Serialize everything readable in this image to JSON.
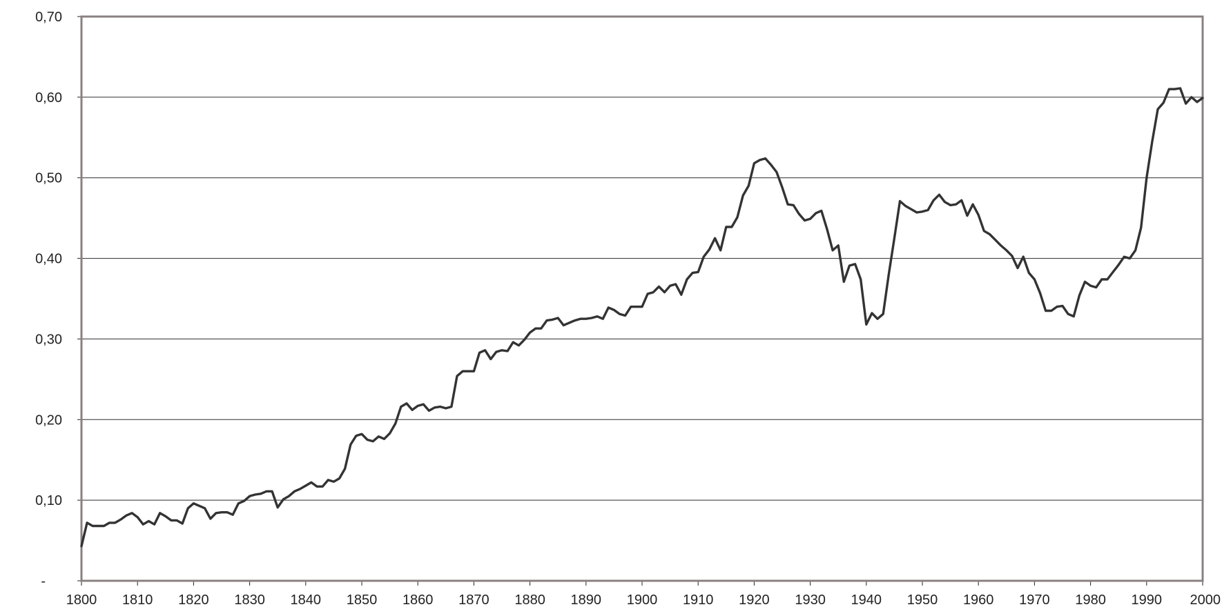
{
  "chart_data": {
    "type": "line",
    "title": "",
    "xlabel": "",
    "ylabel": "",
    "xlim": [
      1800,
      2000
    ],
    "ylim": [
      0,
      0.7
    ],
    "grid": true,
    "legend": "none",
    "line_color": "#333333",
    "y_ticks": [
      {
        "value": 0.0,
        "label": "-"
      },
      {
        "value": 0.1,
        "label": "0,10"
      },
      {
        "value": 0.2,
        "label": "0,20"
      },
      {
        "value": 0.3,
        "label": "0,30"
      },
      {
        "value": 0.4,
        "label": "0,40"
      },
      {
        "value": 0.5,
        "label": "0,50"
      },
      {
        "value": 0.6,
        "label": "0,60"
      },
      {
        "value": 0.7,
        "label": "0,70"
      }
    ],
    "x_ticks": [
      {
        "value": 1800,
        "label": "1800"
      },
      {
        "value": 1810,
        "label": "1810"
      },
      {
        "value": 1820,
        "label": "1820"
      },
      {
        "value": 1830,
        "label": "1830"
      },
      {
        "value": 1840,
        "label": "1840"
      },
      {
        "value": 1850,
        "label": "1850"
      },
      {
        "value": 1860,
        "label": "1860"
      },
      {
        "value": 1870,
        "label": "1870"
      },
      {
        "value": 1880,
        "label": "1880"
      },
      {
        "value": 1890,
        "label": "1890"
      },
      {
        "value": 1900,
        "label": "1900"
      },
      {
        "value": 1910,
        "label": "1910"
      },
      {
        "value": 1920,
        "label": "1920"
      },
      {
        "value": 1930,
        "label": "1930"
      },
      {
        "value": 1940,
        "label": "1940"
      },
      {
        "value": 1950,
        "label": "1950"
      },
      {
        "value": 1960,
        "label": "1960"
      },
      {
        "value": 1970,
        "label": "1970"
      },
      {
        "value": 1980,
        "label": "1980"
      },
      {
        "value": 1990,
        "label": "1990"
      },
      {
        "value": 2000,
        "label": "2000"
      }
    ],
    "series": [
      {
        "x": [
          1800,
          1801,
          1802,
          1803,
          1804,
          1805,
          1806,
          1807,
          1808,
          1809,
          1810,
          1811,
          1812,
          1813,
          1814,
          1815,
          1816,
          1817,
          1818,
          1819,
          1820,
          1821,
          1822,
          1823,
          1824,
          1825,
          1826,
          1827,
          1828,
          1829,
          1830,
          1831,
          1832,
          1833,
          1834,
          1835,
          1836,
          1837,
          1838,
          1839,
          1840,
          1841,
          1842,
          1843,
          1844,
          1845,
          1846,
          1847,
          1848,
          1849,
          1850,
          1851,
          1852,
          1853,
          1854,
          1855,
          1856,
          1857,
          1858,
          1859,
          1860,
          1861,
          1862,
          1863,
          1864,
          1865,
          1866,
          1867,
          1868,
          1869,
          1870,
          1871,
          1872,
          1873,
          1874,
          1875,
          1876,
          1877,
          1878,
          1879,
          1880,
          1881,
          1882,
          1883,
          1884,
          1885,
          1886,
          1887,
          1888,
          1889,
          1890,
          1891,
          1892,
          1893,
          1894,
          1895,
          1896,
          1897,
          1898,
          1899,
          1900,
          1901,
          1902,
          1903,
          1904,
          1905,
          1906,
          1907,
          1908,
          1909,
          1910,
          1911,
          1912,
          1913,
          1914,
          1915,
          1916,
          1917,
          1918,
          1919,
          1920,
          1921,
          1922,
          1923,
          1924,
          1925,
          1926,
          1927,
          1928,
          1929,
          1930,
          1931,
          1932,
          1933,
          1934,
          1935,
          1936,
          1937,
          1938,
          1939,
          1940,
          1941,
          1942,
          1943,
          1944,
          1945,
          1946,
          1947,
          1948,
          1949,
          1950,
          1951,
          1952,
          1953,
          1954,
          1955,
          1956,
          1957,
          1958,
          1959,
          1960,
          1961,
          1962,
          1963,
          1964,
          1965,
          1966,
          1967,
          1968,
          1969,
          1970,
          1971,
          1972,
          1973,
          1974,
          1975,
          1976,
          1977,
          1978,
          1979,
          1980,
          1981,
          1982,
          1983,
          1984,
          1985,
          1986,
          1987,
          1988,
          1989,
          1990,
          1991,
          1992,
          1993,
          1994,
          1995,
          1996,
          1997,
          1998,
          1999,
          2000
        ],
        "values": [
          0.043,
          0.072,
          0.068,
          0.068,
          0.068,
          0.072,
          0.072,
          0.076,
          0.081,
          0.084,
          0.079,
          0.07,
          0.074,
          0.07,
          0.084,
          0.08,
          0.075,
          0.075,
          0.071,
          0.09,
          0.096,
          0.093,
          0.09,
          0.077,
          0.084,
          0.085,
          0.085,
          0.082,
          0.096,
          0.099,
          0.105,
          0.107,
          0.108,
          0.111,
          0.111,
          0.091,
          0.101,
          0.105,
          0.111,
          0.114,
          0.118,
          0.122,
          0.117,
          0.117,
          0.125,
          0.123,
          0.127,
          0.139,
          0.169,
          0.18,
          0.182,
          0.175,
          0.173,
          0.179,
          0.176,
          0.183,
          0.195,
          0.216,
          0.22,
          0.212,
          0.217,
          0.219,
          0.211,
          0.215,
          0.216,
          0.214,
          0.216,
          0.254,
          0.26,
          0.26,
          0.26,
          0.283,
          0.286,
          0.275,
          0.284,
          0.286,
          0.285,
          0.296,
          0.292,
          0.299,
          0.308,
          0.313,
          0.313,
          0.323,
          0.324,
          0.326,
          0.317,
          0.32,
          0.323,
          0.325,
          0.325,
          0.326,
          0.328,
          0.325,
          0.339,
          0.336,
          0.331,
          0.329,
          0.34,
          0.34,
          0.34,
          0.356,
          0.358,
          0.365,
          0.358,
          0.366,
          0.368,
          0.355,
          0.374,
          0.382,
          0.383,
          0.402,
          0.411,
          0.425,
          0.41,
          0.439,
          0.439,
          0.451,
          0.478,
          0.49,
          0.518,
          0.522,
          0.524,
          0.516,
          0.507,
          0.488,
          0.467,
          0.466,
          0.455,
          0.447,
          0.449,
          0.456,
          0.459,
          0.436,
          0.41,
          0.416,
          0.371,
          0.391,
          0.393,
          0.374,
          0.318,
          0.332,
          0.325,
          0.331,
          0.38,
          0.425,
          0.471,
          0.465,
          0.461,
          0.457,
          0.458,
          0.46,
          0.472,
          0.479,
          0.47,
          0.466,
          0.467,
          0.472,
          0.453,
          0.467,
          0.454,
          0.434,
          0.43,
          0.423,
          0.416,
          0.41,
          0.403,
          0.388,
          0.402,
          0.382,
          0.374,
          0.357,
          0.335,
          0.335,
          0.34,
          0.341,
          0.331,
          0.328,
          0.354,
          0.371,
          0.366,
          0.364,
          0.374,
          0.374,
          0.383,
          0.392,
          0.402,
          0.4,
          0.41,
          0.438,
          0.5,
          0.545,
          0.585,
          0.593,
          0.61,
          0.61,
          0.611,
          0.592,
          0.6,
          0.594,
          0.599
        ]
      }
    ]
  }
}
